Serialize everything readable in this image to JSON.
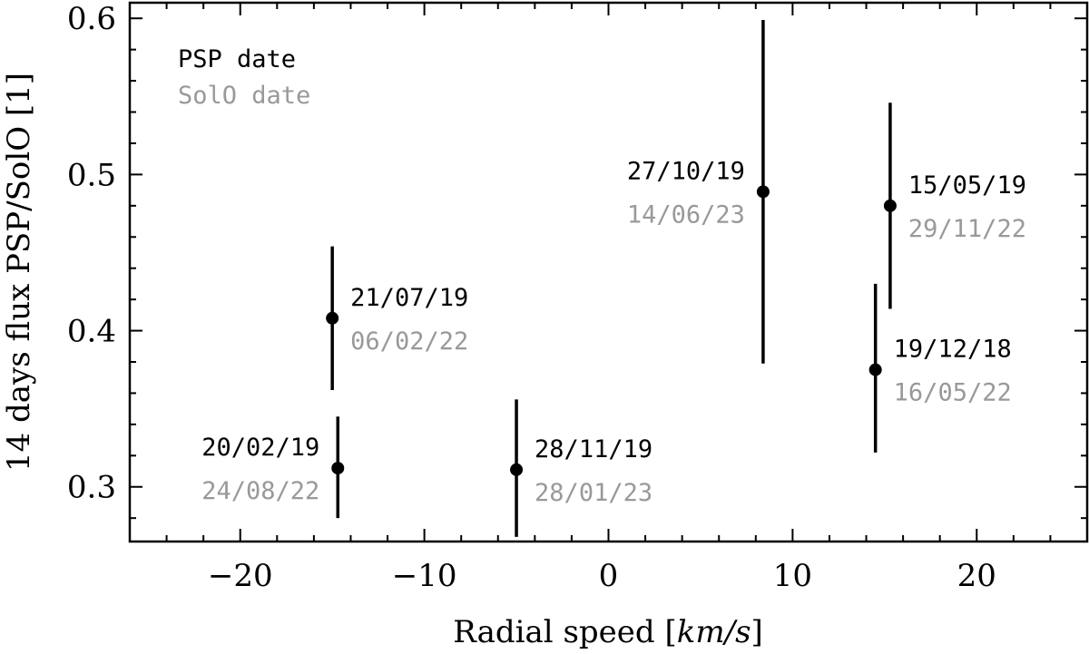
{
  "colors": {
    "psp": "#000000",
    "solo": "#999999",
    "axis": "#000000",
    "background": "#ffffff"
  },
  "chart_data": {
    "type": "scatter",
    "xlabel_prefix": "Radial speed [",
    "xlabel_units": "km/s",
    "xlabel_suffix": "]",
    "ylabel": "14 days flux PSP/SolO [1]",
    "xlim": [
      -26,
      26
    ],
    "ylim": [
      0.265,
      0.61
    ],
    "xticks": [
      -20,
      -10,
      0,
      10,
      20
    ],
    "xtick_labels": [
      "−20",
      "−10",
      "0",
      "10",
      "20"
    ],
    "yticks": [
      0.3,
      0.4,
      0.5,
      0.6
    ],
    "ytick_labels": [
      "0.3",
      "0.4",
      "0.5",
      "0.6"
    ],
    "x_minor_step": 2,
    "y_minor_step": 0.02,
    "grid": false,
    "legend": {
      "placement": "top-left",
      "entries": [
        {
          "label": "PSP date",
          "color": "#000000"
        },
        {
          "label": "SolO date",
          "color": "#999999"
        }
      ]
    },
    "points": [
      {
        "x": -15.0,
        "y": 0.408,
        "yerr_low": 0.362,
        "yerr_high": 0.454,
        "psp_date": "21/07/19",
        "solo_date": "06/02/22",
        "label_side": "right",
        "label_dy": 0.0
      },
      {
        "x": -14.7,
        "y": 0.312,
        "yerr_low": 0.28,
        "yerr_high": 0.345,
        "psp_date": "20/02/19",
        "solo_date": "24/08/22",
        "label_side": "left",
        "label_dy": 0.0
      },
      {
        "x": -5.0,
        "y": 0.311,
        "yerr_low": 0.268,
        "yerr_high": 0.356,
        "psp_date": "28/11/19",
        "solo_date": "28/01/23",
        "label_side": "right",
        "label_dy": 0.0
      },
      {
        "x": 8.4,
        "y": 0.489,
        "yerr_low": 0.379,
        "yerr_high": 0.599,
        "psp_date": "27/10/19",
        "solo_date": "14/06/23",
        "label_side": "left",
        "label_dy": 0.0
      },
      {
        "x": 15.3,
        "y": 0.48,
        "yerr_low": 0.414,
        "yerr_high": 0.546,
        "psp_date": "15/05/19",
        "solo_date": "29/11/22",
        "label_side": "right",
        "label_dy": 0.0
      },
      {
        "x": 14.5,
        "y": 0.375,
        "yerr_low": 0.322,
        "yerr_high": 0.43,
        "psp_date": "19/12/18",
        "solo_date": "16/05/22",
        "label_side": "right",
        "label_dy": 0.0
      }
    ]
  }
}
